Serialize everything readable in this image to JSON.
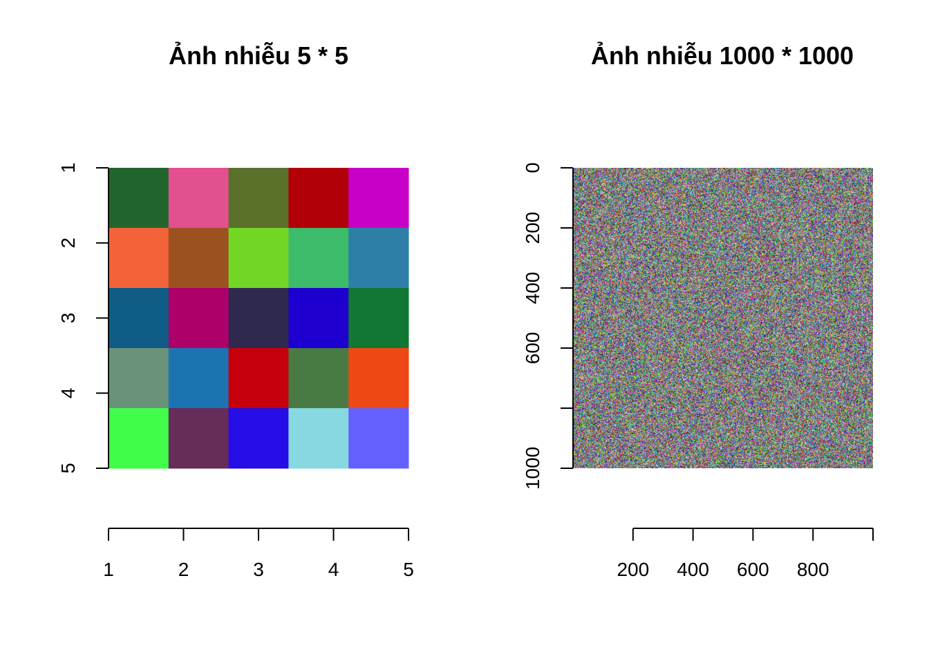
{
  "chart_data": [
    {
      "type": "heatmap",
      "title": "Ảnh nhiễu 5 * 5",
      "x_ticks": [
        "1",
        "2",
        "3",
        "4",
        "5"
      ],
      "y_ticks": [
        "1",
        "2",
        "3",
        "4",
        "5"
      ],
      "rows": 5,
      "cols": 5,
      "cells": [
        [
          "#22652c",
          "#e2508f",
          "#5b712b",
          "#b10007",
          "#c800c7"
        ],
        [
          "#f2633a",
          "#9c5120",
          "#72d724",
          "#3cbb6a",
          "#2e7fa8"
        ],
        [
          "#0f5c86",
          "#ad006a",
          "#2f2950",
          "#1d00cf",
          "#127732"
        ],
        [
          "#6a9278",
          "#1b73b2",
          "#c5000b",
          "#497a44",
          "#ee4814"
        ],
        [
          "#3ffd49",
          "#652d57",
          "#250de6",
          "#87d8e0",
          "#6460fe"
        ]
      ],
      "xlim": [
        1,
        5
      ],
      "ylim": [
        1,
        5
      ],
      "y_reversed": true
    },
    {
      "type": "heatmap",
      "title": "Ảnh nhiễu 1000 * 1000",
      "x_ticks": [
        "200",
        "400",
        "600",
        "800"
      ],
      "y_ticks": [
        "0",
        "200",
        "400",
        "600",
        "1000"
      ],
      "rows": 1000,
      "cols": 1000,
      "cells": "random RGB noise",
      "xlim": [
        0,
        1000
      ],
      "ylim": [
        0,
        1000
      ],
      "y_reversed": true
    }
  ]
}
